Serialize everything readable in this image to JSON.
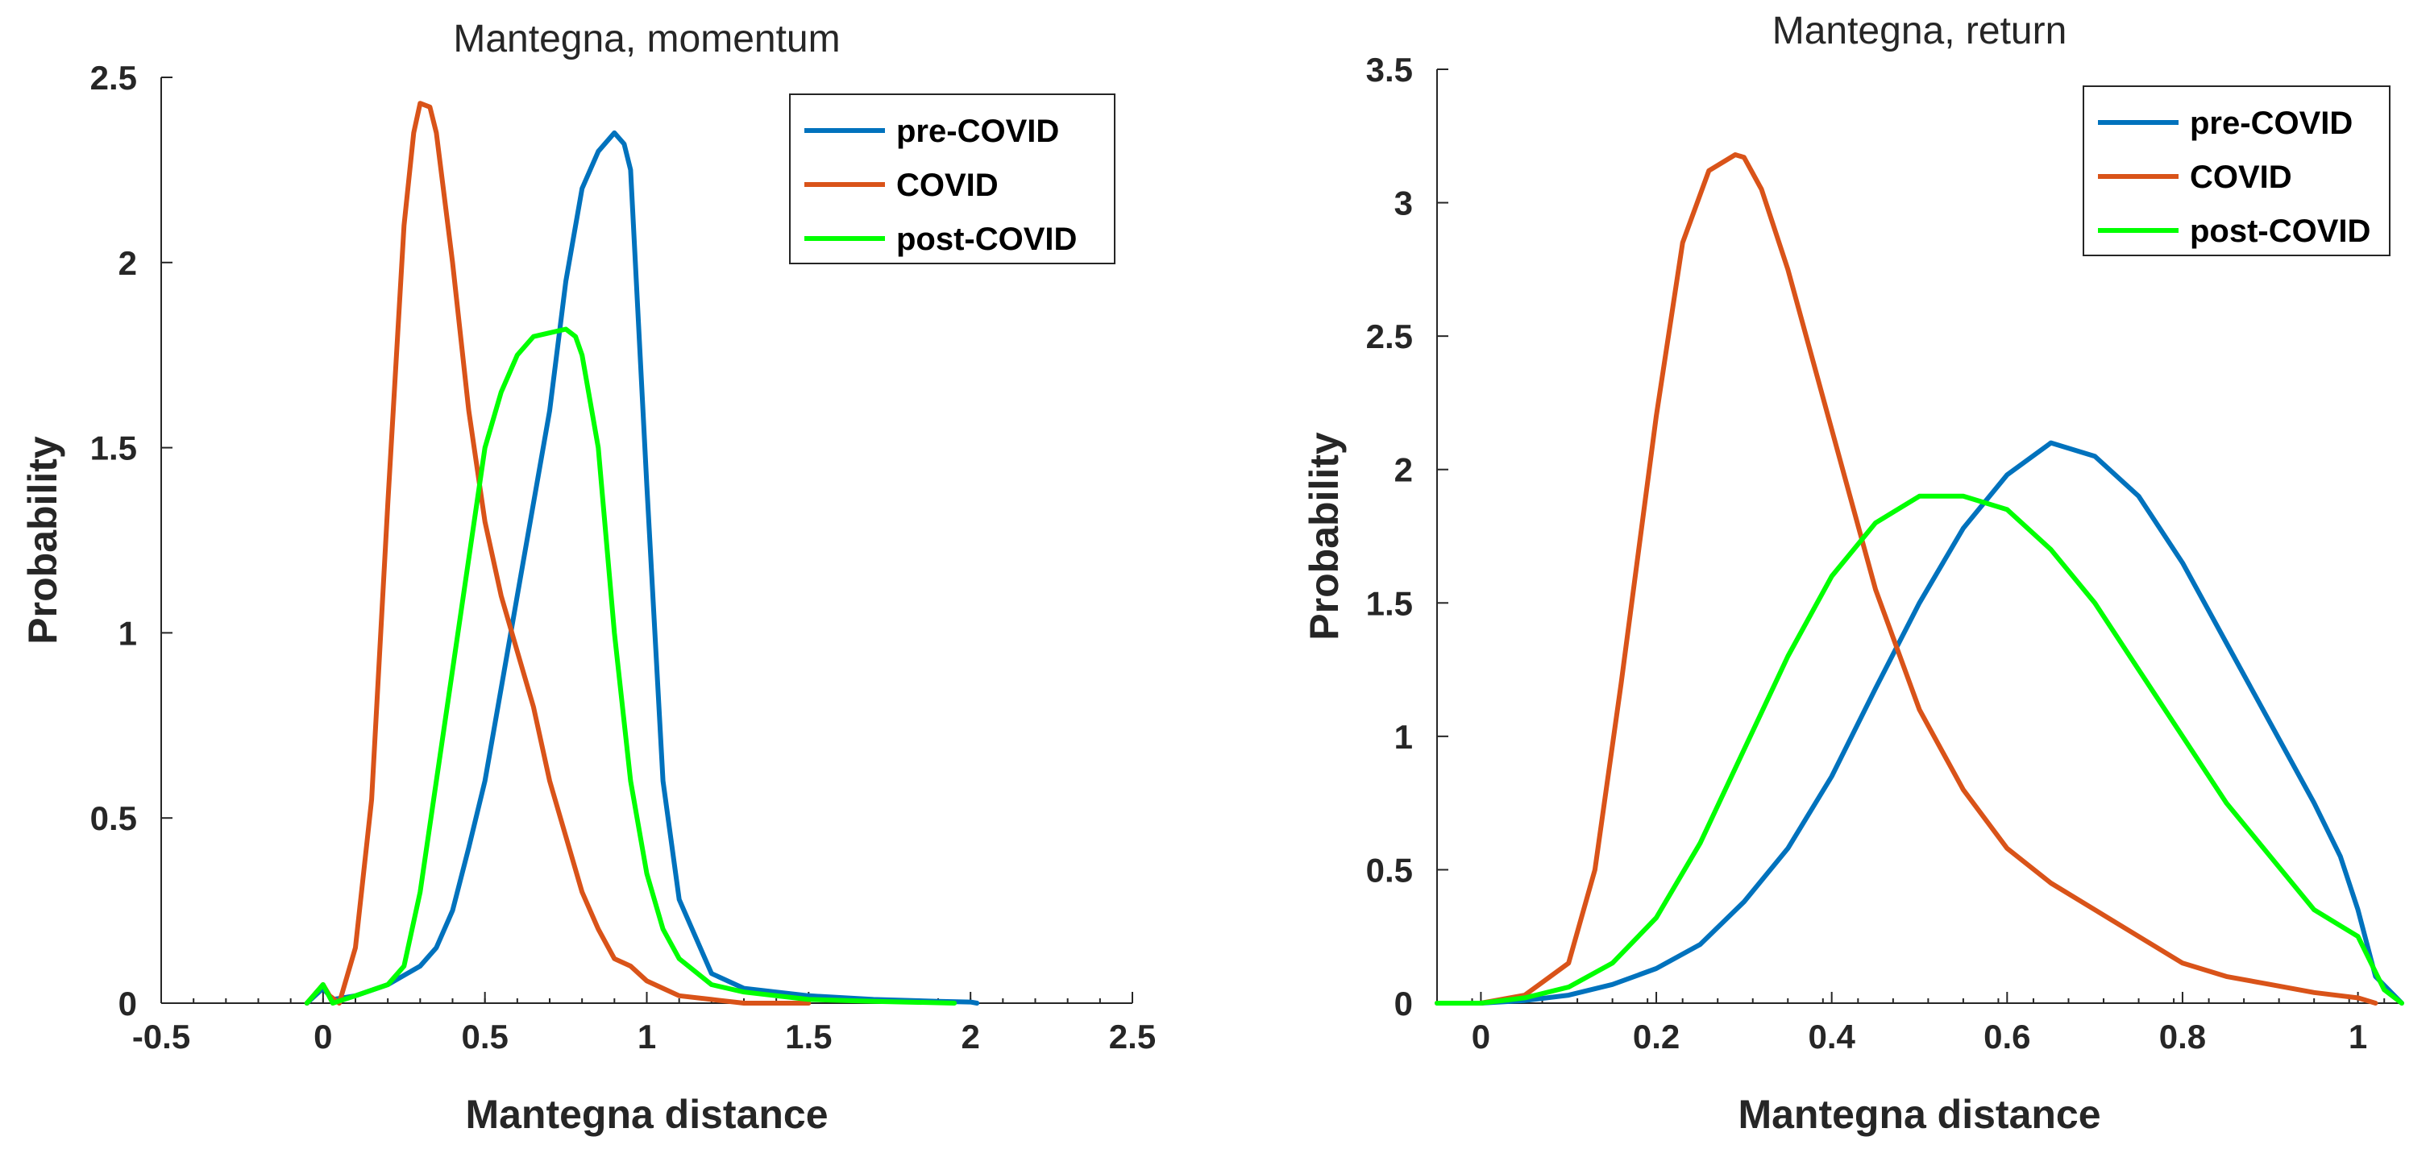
{
  "chart_data": [
    {
      "type": "line",
      "title": "Mantegna, momentum",
      "xlabel": "Mantegna distance",
      "ylabel": "Probability",
      "xlim": [
        -0.5,
        2.5
      ],
      "ylim": [
        0,
        2.5
      ],
      "xticks": [
        -0.5,
        0,
        0.5,
        1,
        1.5,
        2,
        2.5
      ],
      "xtick_labels": [
        "-0.5",
        "0",
        "0.5",
        "1",
        "1.5",
        "2",
        "2.5"
      ],
      "yticks": [
        0,
        0.5,
        1,
        1.5,
        2,
        2.5
      ],
      "ytick_labels": [
        "0",
        "0.5",
        "1",
        "1.5",
        "2",
        "2.5"
      ],
      "grid": false,
      "legend_position": "top-right",
      "series": [
        {
          "name": "pre-COVID",
          "color": "#0072BD",
          "x": [
            -0.05,
            0,
            0.03,
            0.1,
            0.2,
            0.3,
            0.35,
            0.4,
            0.45,
            0.5,
            0.55,
            0.6,
            0.65,
            0.7,
            0.75,
            0.8,
            0.85,
            0.9,
            0.93,
            0.95,
            1.0,
            1.05,
            1.1,
            1.2,
            1.3,
            1.5,
            1.7,
            1.9,
            2.0,
            2.02
          ],
          "y": [
            0.0,
            0.04,
            0.01,
            0.02,
            0.05,
            0.1,
            0.15,
            0.25,
            0.42,
            0.6,
            0.85,
            1.1,
            1.35,
            1.6,
            1.95,
            2.2,
            2.3,
            2.35,
            2.32,
            2.25,
            1.4,
            0.6,
            0.28,
            0.08,
            0.04,
            0.02,
            0.01,
            0.005,
            0.003,
            0.0
          ]
        },
        {
          "name": "COVID",
          "color": "#D95319",
          "x": [
            -0.05,
            0,
            0.02,
            0.05,
            0.1,
            0.15,
            0.2,
            0.25,
            0.28,
            0.3,
            0.33,
            0.35,
            0.4,
            0.45,
            0.5,
            0.55,
            0.6,
            0.65,
            0.7,
            0.75,
            0.8,
            0.85,
            0.9,
            0.95,
            1.0,
            1.05,
            1.1,
            1.2,
            1.3,
            1.5
          ],
          "y": [
            0.0,
            0.05,
            0.02,
            0.0,
            0.15,
            0.55,
            1.35,
            2.1,
            2.35,
            2.43,
            2.42,
            2.35,
            2.0,
            1.6,
            1.3,
            1.1,
            0.95,
            0.8,
            0.6,
            0.45,
            0.3,
            0.2,
            0.12,
            0.1,
            0.06,
            0.04,
            0.02,
            0.01,
            0.0,
            0.0
          ]
        },
        {
          "name": "post-COVID",
          "color": "#00FF00",
          "x": [
            -0.05,
            0,
            0.03,
            0.1,
            0.2,
            0.25,
            0.3,
            0.35,
            0.4,
            0.45,
            0.5,
            0.55,
            0.6,
            0.65,
            0.7,
            0.75,
            0.78,
            0.8,
            0.85,
            0.9,
            0.95,
            1.0,
            1.05,
            1.1,
            1.2,
            1.3,
            1.5,
            1.7,
            1.95
          ],
          "y": [
            0.0,
            0.05,
            0.0,
            0.02,
            0.05,
            0.1,
            0.3,
            0.6,
            0.9,
            1.2,
            1.5,
            1.65,
            1.75,
            1.8,
            1.81,
            1.82,
            1.8,
            1.75,
            1.5,
            1.0,
            0.6,
            0.35,
            0.2,
            0.12,
            0.05,
            0.03,
            0.01,
            0.005,
            0.0
          ]
        }
      ]
    },
    {
      "type": "line",
      "title": "Mantegna, return",
      "xlabel": "Mantegna distance",
      "ylabel": "Probability",
      "xlim": [
        -0.05,
        1.05
      ],
      "ylim": [
        0,
        3.5
      ],
      "xticks": [
        0,
        0.2,
        0.4,
        0.6,
        0.8,
        1
      ],
      "xtick_labels": [
        "0",
        "0.2",
        "0.4",
        "0.6",
        "0.8",
        "1"
      ],
      "yticks": [
        0,
        0.5,
        1,
        1.5,
        2,
        2.5,
        3,
        3.5
      ],
      "ytick_labels": [
        "0",
        "0.5",
        "1",
        "1.5",
        "2",
        "2.5",
        "3",
        "3.5"
      ],
      "grid": false,
      "legend_position": "top-right",
      "series": [
        {
          "name": "pre-COVID",
          "color": "#0072BD",
          "x": [
            -0.05,
            0,
            0.05,
            0.1,
            0.15,
            0.2,
            0.25,
            0.3,
            0.35,
            0.4,
            0.45,
            0.5,
            0.55,
            0.6,
            0.65,
            0.7,
            0.75,
            0.8,
            0.85,
            0.9,
            0.95,
            0.98,
            1.0,
            1.02,
            1.05
          ],
          "y": [
            0.0,
            0.0,
            0.01,
            0.03,
            0.07,
            0.13,
            0.22,
            0.38,
            0.58,
            0.85,
            1.18,
            1.5,
            1.78,
            1.98,
            2.1,
            2.05,
            1.9,
            1.65,
            1.35,
            1.05,
            0.75,
            0.55,
            0.35,
            0.1,
            0.0
          ]
        },
        {
          "name": "COVID",
          "color": "#D95319",
          "x": [
            -0.05,
            0,
            0.05,
            0.1,
            0.13,
            0.16,
            0.2,
            0.23,
            0.26,
            0.29,
            0.3,
            0.32,
            0.35,
            0.4,
            0.45,
            0.5,
            0.55,
            0.6,
            0.65,
            0.7,
            0.75,
            0.8,
            0.85,
            0.9,
            0.95,
            1.0,
            1.02
          ],
          "y": [
            0.0,
            0.0,
            0.03,
            0.15,
            0.5,
            1.2,
            2.2,
            2.85,
            3.12,
            3.18,
            3.17,
            3.05,
            2.75,
            2.15,
            1.55,
            1.1,
            0.8,
            0.58,
            0.45,
            0.35,
            0.25,
            0.15,
            0.1,
            0.07,
            0.04,
            0.02,
            0.0
          ]
        },
        {
          "name": "post-COVID",
          "color": "#00FF00",
          "x": [
            -0.05,
            0,
            0.05,
            0.1,
            0.15,
            0.2,
            0.25,
            0.3,
            0.35,
            0.4,
            0.45,
            0.5,
            0.55,
            0.6,
            0.65,
            0.7,
            0.75,
            0.8,
            0.85,
            0.9,
            0.95,
            1.0,
            1.03,
            1.05
          ],
          "y": [
            0.0,
            0.0,
            0.02,
            0.06,
            0.15,
            0.32,
            0.6,
            0.95,
            1.3,
            1.6,
            1.8,
            1.9,
            1.9,
            1.85,
            1.7,
            1.5,
            1.25,
            1.0,
            0.75,
            0.55,
            0.35,
            0.25,
            0.05,
            0.0
          ]
        }
      ]
    }
  ]
}
